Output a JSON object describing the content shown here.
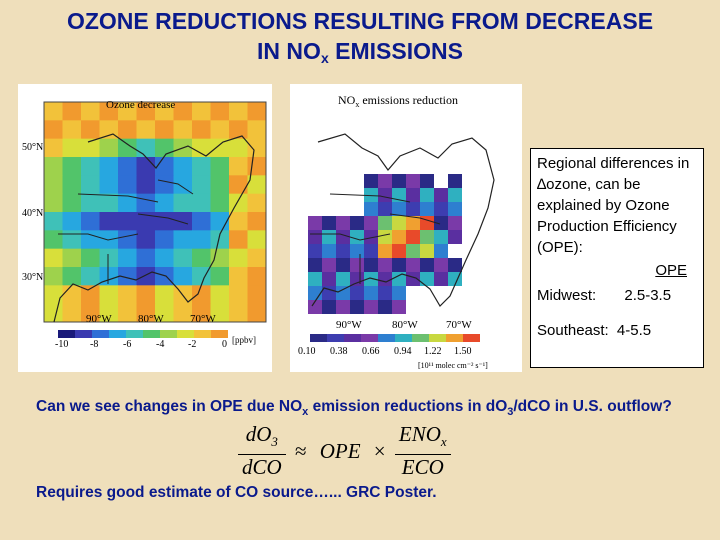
{
  "title": {
    "line1": "OZONE REDUCTIONS RESULTING FROM DECREASE",
    "line2_prefix": "IN NO",
    "line2_sub": "x",
    "line2_suffix": " EMISSIONS"
  },
  "left_map": {
    "title": "Ozone decrease",
    "lat_labels": [
      "50°N",
      "40°N",
      "30°N"
    ],
    "lon_labels": [
      "90°W",
      "80°W",
      "70°W"
    ],
    "colorbar_ticks": [
      "-10",
      "-8",
      "-6",
      "-4",
      "-2",
      "0"
    ],
    "units": "[ppbv]"
  },
  "right_map": {
    "title_prefix": "NO",
    "title_sub": "x",
    "title_suffix": " emissions reduction",
    "lon_labels": [
      "90°W",
      "80°W",
      "70°W"
    ],
    "colorbar_ticks": [
      "0.10",
      "0.38",
      "0.66",
      "0.94",
      "1.22",
      "1.50"
    ],
    "units": "[10¹¹ molec cm⁻² s⁻¹]"
  },
  "textbox": {
    "intro": "Regional differences in ∆ozone, can be explained by Ozone Production Efficiency (OPE):",
    "header": "OPE",
    "midwest_label": "Midwest:",
    "midwest_value": "2.5-3.5",
    "southeast_label": "Southeast:",
    "southeast_value": "4-5.5"
  },
  "question": {
    "p1": "Can we see changes in OPE due NO",
    "s1": "x",
    "p2": " emission reductions in dO",
    "s2": "3",
    "p3": "/dCO in U.S. outflow?"
  },
  "equation": {
    "lhs_num_prefix": "dO",
    "lhs_num_sub": "3",
    "lhs_den": "dCO",
    "approx": "≈",
    "ope": "OPE",
    "times": "×",
    "rhs_num_prefix": "ENO",
    "rhs_num_sub": "x",
    "rhs_den": "ECO"
  },
  "footer": "Requires good estimate of CO source…... GRC Poster."
}
